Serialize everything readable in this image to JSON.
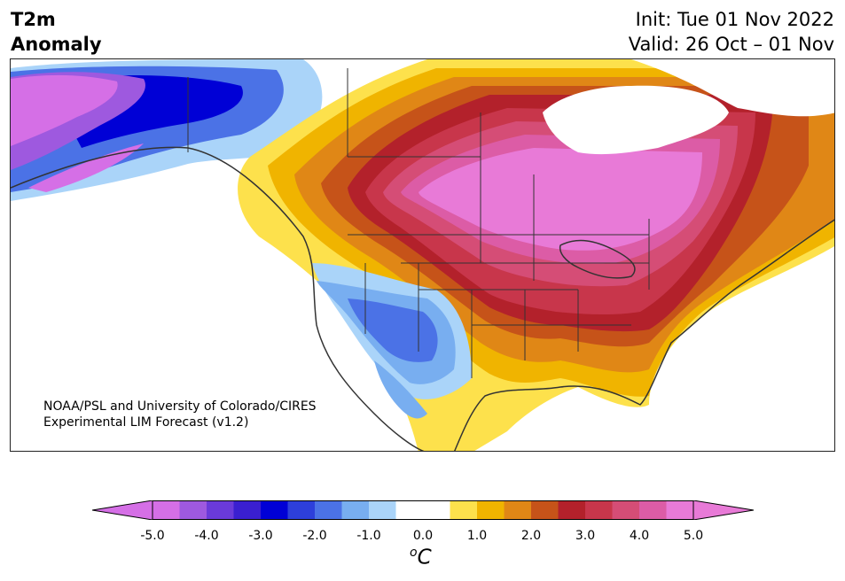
{
  "header": {
    "variable": "T2m",
    "subtitle": "Anomaly",
    "init": "Init: Tue 01 Nov 2022",
    "valid": "Valid: 26 Oct – 01 Nov"
  },
  "map": {
    "credit_line1": "NOAA/PSL and University of Colorado/CIRES",
    "credit_line2": "Experimental LIM Forecast (v1.2)"
  },
  "colorbar": {
    "unit_base": "C",
    "unit_sup": "o",
    "ticks": [
      "-5.0",
      "-4.0",
      "-3.0",
      "-2.0",
      "-1.0",
      "0.0",
      "1.0",
      "2.0",
      "3.0",
      "4.0",
      "5.0"
    ],
    "colors": [
      "#d56fe6",
      "#9e59df",
      "#6a3ad9",
      "#3a1fd0",
      "#0000d6",
      "#2d3fdb",
      "#4b72e6",
      "#78aef0",
      "#aad4f9",
      "#ffffff",
      "#ffffff",
      "#fde14c",
      "#f0b400",
      "#e08716",
      "#c65319",
      "#b3212b",
      "#c8364b",
      "#d54d76",
      "#dc5ca6",
      "#e87ad7"
    ],
    "under_color": "#d56fe6",
    "over_color": "#e87ad7"
  }
}
